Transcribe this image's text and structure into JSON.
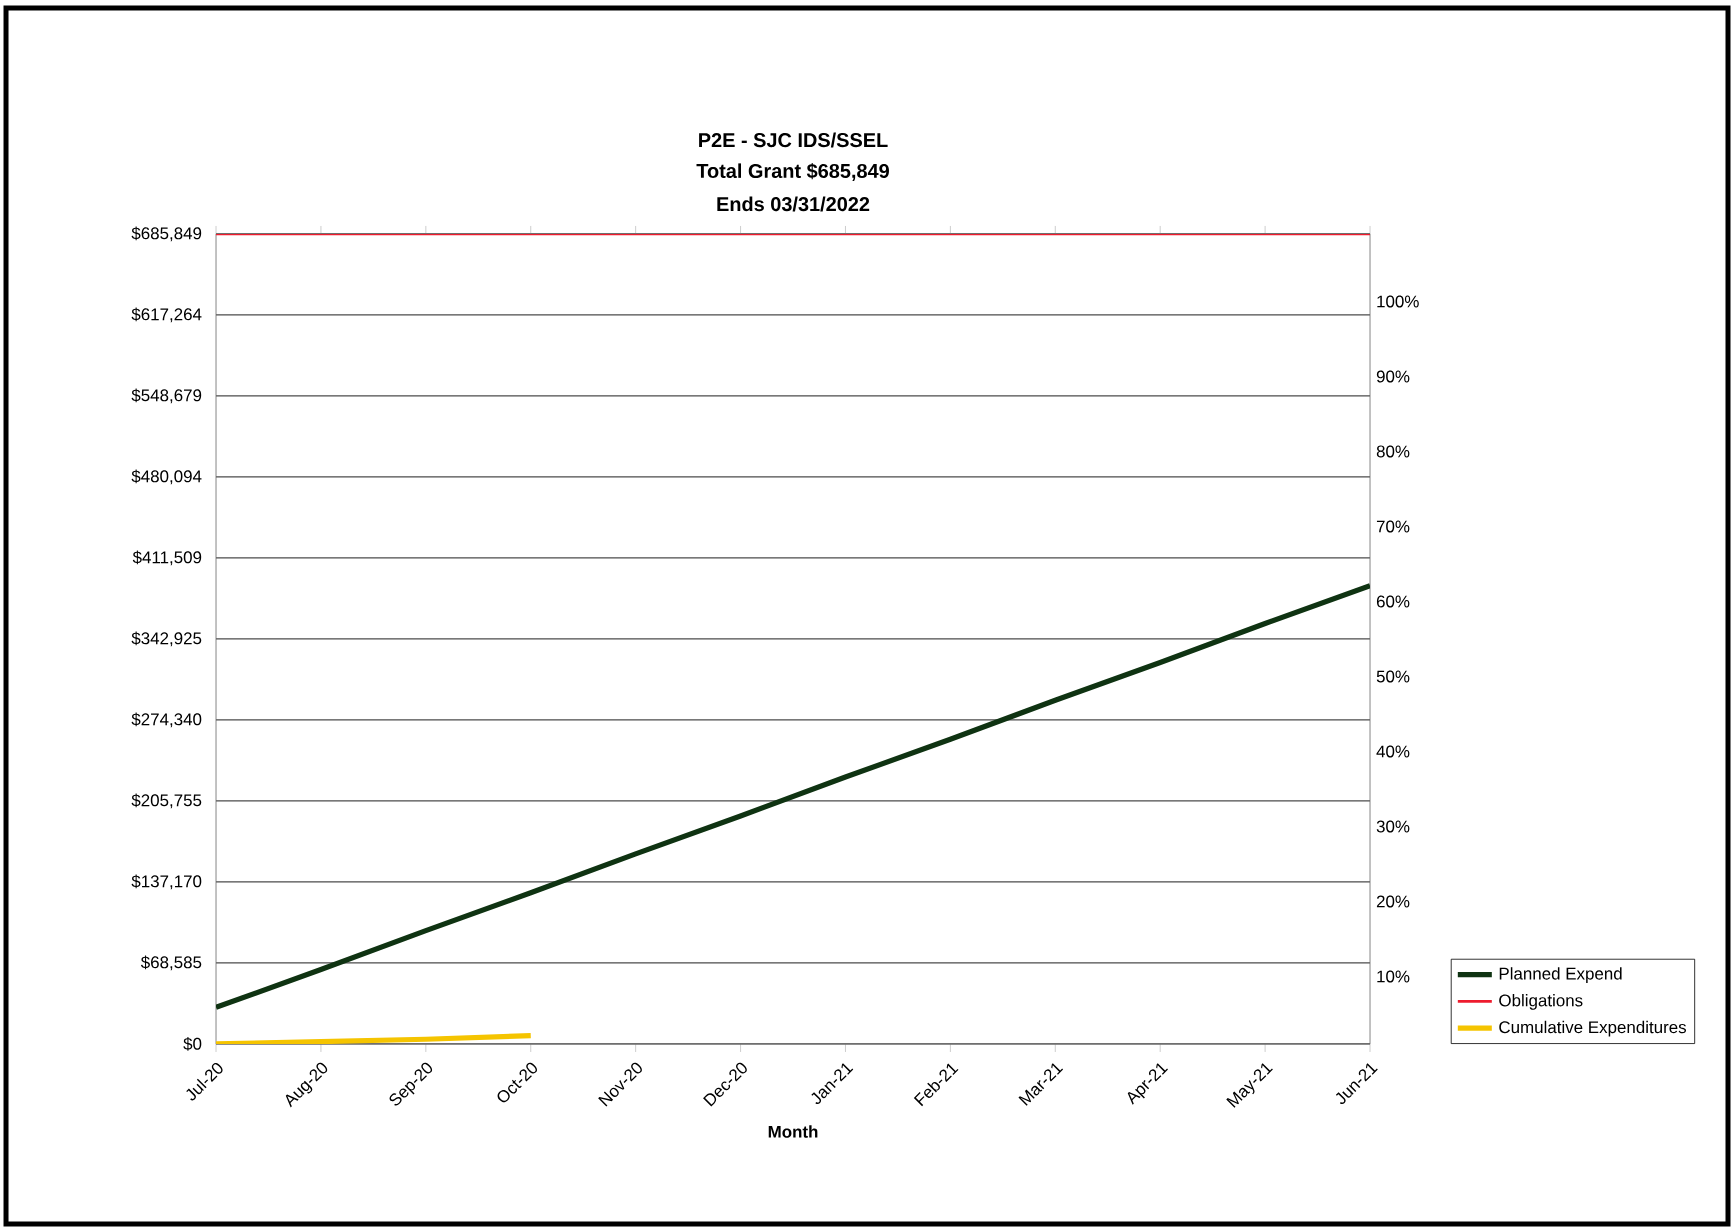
{
  "chart_data": {
    "type": "line",
    "title": "P2E - SJC IDS/SSEL",
    "subtitle": "Total Grant  $685,849",
    "annotations": [
      "Ends 03/31/2022"
    ],
    "xlabel": "Month",
    "categories": [
      "Jul-20",
      "Aug-20",
      "Sep-20",
      "Oct-20",
      "Nov-20",
      "Dec-20",
      "Jan-21",
      "Feb-21",
      "Mar-21",
      "Apr-21",
      "May-21",
      "Jun-21"
    ],
    "series": [
      {
        "name": "Planned Expend",
        "color": "#0f3312",
        "values": [
          31000,
          63000,
          96000,
          128000,
          161000,
          193000,
          226000,
          258000,
          291000,
          323000,
          356000,
          388000
        ]
      },
      {
        "name": "Obligations",
        "color": "#ee1c2e",
        "values": [
          685849,
          685849,
          685849,
          685849,
          685849,
          685849,
          685849,
          685849,
          685849,
          685849,
          685849,
          685849
        ]
      },
      {
        "name": "Cumulative Expenditures",
        "color": "#f5c400",
        "values": [
          0,
          2000,
          4000,
          7000,
          null,
          null,
          null,
          null,
          null,
          null,
          null,
          null
        ]
      }
    ],
    "ylim": [
      0,
      685849
    ],
    "yticks": [
      {
        "value": 0,
        "label": "$0"
      },
      {
        "value": 68585,
        "label": "$68,585"
      },
      {
        "value": 137170,
        "label": "$137,170"
      },
      {
        "value": 205755,
        "label": "$205,755"
      },
      {
        "value": 274340,
        "label": "$274,340"
      },
      {
        "value": 342925,
        "label": "$342,925"
      },
      {
        "value": 411509,
        "label": "$411,509"
      },
      {
        "value": 480094,
        "label": "$480,094"
      },
      {
        "value": 548679,
        "label": "$548,679"
      },
      {
        "value": 617264,
        "label": "$617,264"
      },
      {
        "value": 685849,
        "label": "$685,849"
      }
    ],
    "y2lim": [
      1,
      109
    ],
    "y2ticks": [
      {
        "value": 10,
        "label": "10%"
      },
      {
        "value": 20,
        "label": "20%"
      },
      {
        "value": 30,
        "label": "30%"
      },
      {
        "value": 40,
        "label": "40%"
      },
      {
        "value": 50,
        "label": "50%"
      },
      {
        "value": 60,
        "label": "60%"
      },
      {
        "value": 70,
        "label": "70%"
      },
      {
        "value": 80,
        "label": "80%"
      },
      {
        "value": 90,
        "label": "90%"
      },
      {
        "value": 100,
        "label": "100%"
      }
    ],
    "grid": "y",
    "legend": "bottom right"
  }
}
